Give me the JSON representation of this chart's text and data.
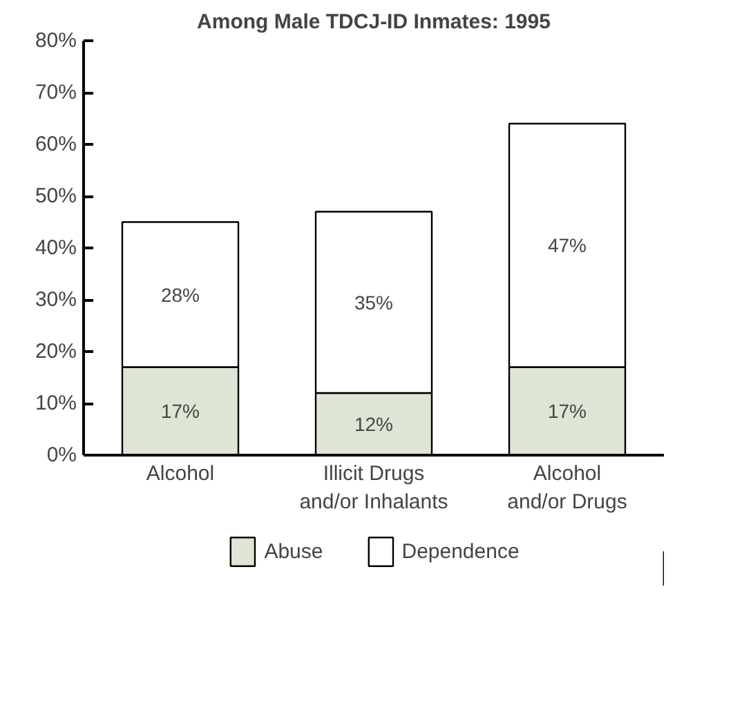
{
  "chart_data": {
    "type": "bar",
    "title": "Among Male TDCJ-ID Inmates: 1995",
    "stacked": true,
    "categories": [
      "Alcohol",
      "Illicit Drugs\nand/or Inhalants",
      "Alcohol\nand/or Drugs"
    ],
    "series": [
      {
        "name": "Abuse",
        "color": "#dfe5d4",
        "values": [
          17,
          12,
          17
        ],
        "value_labels": [
          "17%",
          "12%",
          "17%"
        ]
      },
      {
        "name": "Dependence",
        "color": "#ffffff",
        "values": [
          28,
          35,
          47
        ],
        "value_labels": [
          "28%",
          "35%",
          "47%"
        ]
      }
    ],
    "ylim": [
      0,
      80
    ],
    "yticks": [
      {
        "value": 0,
        "label": "0%"
      },
      {
        "value": 10,
        "label": "10%"
      },
      {
        "value": 20,
        "label": "20%"
      },
      {
        "value": 30,
        "label": "30%"
      },
      {
        "value": 40,
        "label": "40%"
      },
      {
        "value": 50,
        "label": "50%"
      },
      {
        "value": 60,
        "label": "60%"
      },
      {
        "value": 70,
        "label": "70%"
      },
      {
        "value": 80,
        "label": "80%"
      }
    ],
    "grid": false,
    "legend": "bottom"
  }
}
